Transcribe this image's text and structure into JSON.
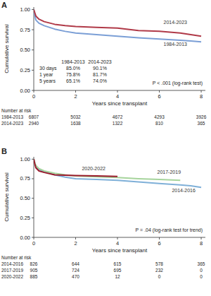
{
  "chart_data": [
    {
      "type": "line",
      "title": "A",
      "x_label": "Years since transplant",
      "y_label": "Cumulative survival",
      "x": [
        0,
        0.05,
        0.1,
        0.25,
        0.5,
        1,
        1.5,
        2,
        3,
        4,
        5,
        6,
        7,
        7.5,
        8
      ],
      "series": [
        {
          "name": "1984-2013",
          "color": "#7b9fd6",
          "values": [
            1,
            0.93,
            0.87,
            0.83,
            0.8,
            0.758,
            0.73,
            0.71,
            0.69,
            0.67,
            0.651,
            0.635,
            0.62,
            0.61,
            0.6
          ]
        },
        {
          "name": "2014-2023",
          "color": "#b03a48",
          "values": [
            1,
            0.96,
            0.92,
            0.88,
            0.85,
            0.817,
            0.8,
            0.79,
            0.78,
            0.77,
            0.74,
            0.73,
            0.71,
            0.69,
            0.67
          ]
        }
      ],
      "xlim": [
        0,
        8.2
      ],
      "xticks": [
        0,
        2,
        4,
        6,
        8
      ],
      "ylim": [
        0,
        1.03
      ],
      "yticks": [
        {
          "value": 0,
          "label": "0.00"
        },
        {
          "value": 0.25,
          "label": "0.25"
        },
        {
          "value": 0.5,
          "label": "0.50"
        },
        {
          "value": 0.75,
          "label": "0.75"
        },
        {
          "value": 1,
          "label": "1.00"
        }
      ],
      "annotations": [
        "P < .001 (log-rank test)"
      ],
      "survival_table": {
        "columns": [
          "1984-2013",
          "2014-2023"
        ],
        "rows": [
          {
            "label": "30 days",
            "values": [
              "85.0%",
              "90.1%"
            ]
          },
          {
            "label": "1 year",
            "values": [
              "75.8%",
              "81.7%"
            ]
          },
          {
            "label": "5 years",
            "values": [
              "65.1%",
              "74.0%"
            ]
          }
        ]
      },
      "risk_table": {
        "title": "Number at risk",
        "rows": [
          {
            "name": "1984-2013",
            "values": [
              6807,
              5032,
              4672,
              4293,
              3926
            ]
          },
          {
            "name": "2014-2023",
            "values": [
              2940,
              1638,
              1322,
              810,
              365
            ]
          }
        ]
      }
    },
    {
      "type": "line",
      "title": "B",
      "x_label": "Years since transplant",
      "y_label": "Cumulative survival",
      "x": [
        0,
        0.05,
        0.1,
        0.25,
        0.5,
        1,
        1.5,
        2,
        3,
        4,
        5,
        6,
        7,
        7.5,
        8
      ],
      "series": [
        {
          "name": "2014-2016",
          "color": "#7fb0d8",
          "values": [
            1,
            0.95,
            0.91,
            0.87,
            0.84,
            0.8,
            0.77,
            0.75,
            0.74,
            0.73,
            0.71,
            0.69,
            0.67,
            0.66,
            0.64
          ]
        },
        {
          "name": "2017-2019",
          "color": "#a6d49c",
          "values": [
            1,
            0.95,
            0.92,
            0.88,
            0.85,
            0.82,
            0.8,
            0.785,
            0.775,
            0.765,
            0.75,
            0.74,
            0.73,
            null,
            null
          ]
        },
        {
          "name": "2020-2022",
          "color": "#9b1c2c",
          "values": [
            1,
            0.94,
            0.89,
            0.85,
            0.83,
            0.8,
            0.795,
            0.79,
            0.785,
            0.78,
            null,
            null,
            null,
            null,
            null
          ]
        }
      ],
      "xlim": [
        0,
        8.2
      ],
      "xticks": [
        0,
        2,
        4,
        6,
        8
      ],
      "ylim": [
        0,
        1.03
      ],
      "yticks": [
        {
          "value": 0,
          "label": "0.00"
        },
        {
          "value": 0.25,
          "label": "0.25"
        },
        {
          "value": 0.5,
          "label": "0.50"
        },
        {
          "value": 0.75,
          "label": "0.75"
        },
        {
          "value": 1,
          "label": "1.00"
        }
      ],
      "annotations": [
        "P = .04 (log-rank test for trend)"
      ],
      "risk_table": {
        "title": "Number at risk",
        "rows": [
          {
            "name": "2014-2016",
            "values": [
              826,
              644,
              615,
              578,
              365
            ]
          },
          {
            "name": "2017-2019",
            "values": [
              905,
              724,
              695,
              232,
              0
            ]
          },
          {
            "name": "2020-2022",
            "values": [
              885,
              470,
              12,
              0,
              0
            ]
          }
        ]
      }
    }
  ]
}
